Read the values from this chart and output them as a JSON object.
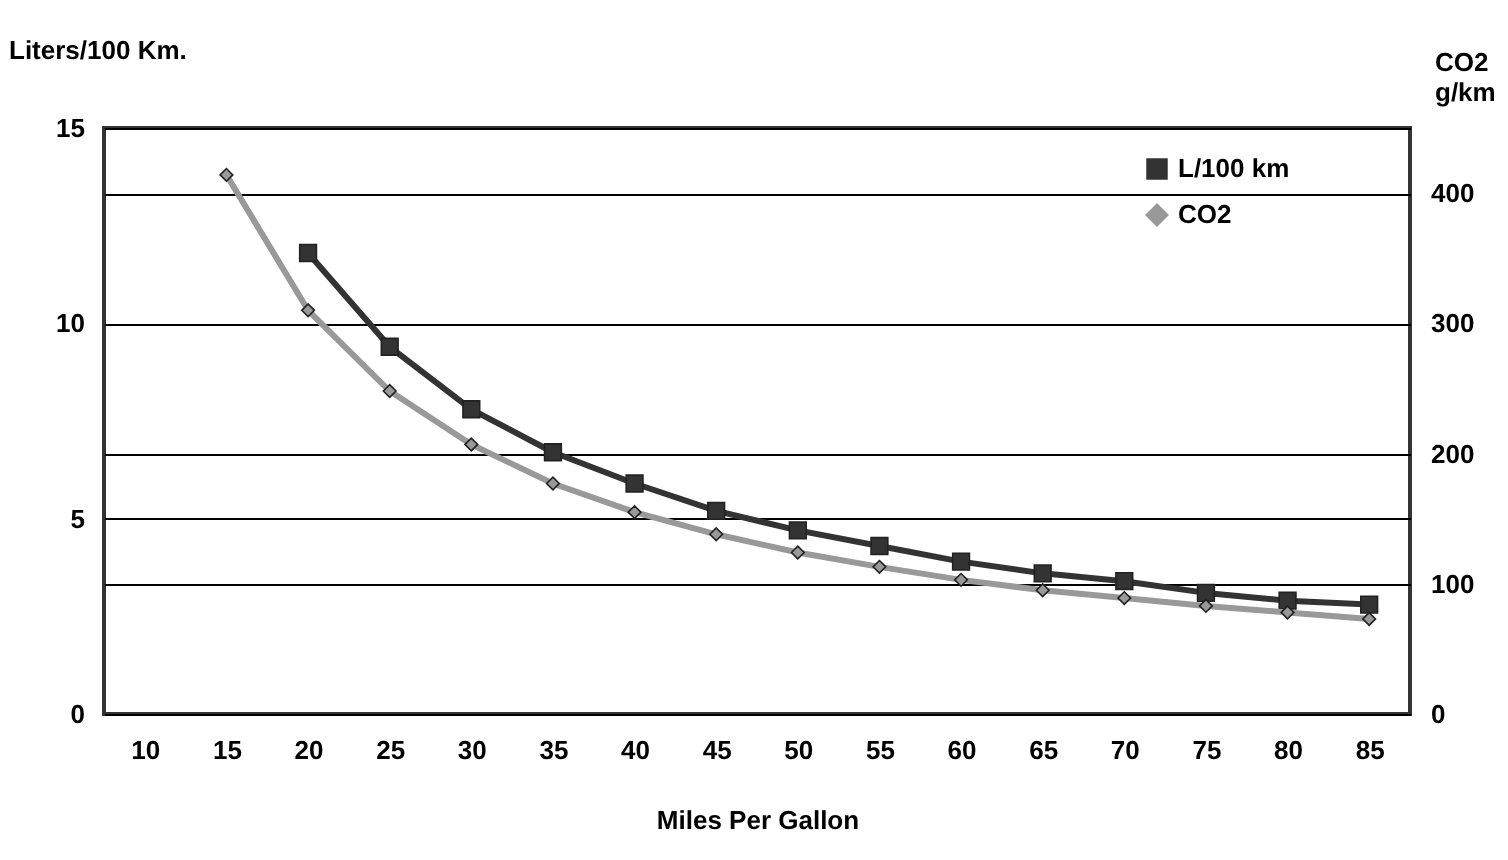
{
  "chart_data": {
    "type": "line",
    "xlabel": "Miles Per Gallon",
    "ylabel": "Liters/100 Km.",
    "y2label": "CO2\ng/km",
    "categories": [
      "10",
      "15",
      "20",
      "25",
      "30",
      "35",
      "40",
      "45",
      "50",
      "55",
      "60",
      "65",
      "70",
      "75",
      "80",
      "85"
    ],
    "series": [
      {
        "name": "L/100 km",
        "color": "#333333",
        "marker": "square",
        "values": [
          null,
          null,
          11.8,
          9.4,
          7.8,
          6.7,
          5.9,
          5.2,
          4.7,
          4.3,
          3.9,
          3.6,
          3.4,
          3.1,
          2.9,
          2.8
        ]
      },
      {
        "name": "CO2",
        "color": "#999999",
        "marker": "diamond",
        "axis": "y2",
        "values": [
          null,
          414,
          310,
          248,
          207,
          177,
          155,
          138,
          124,
          113,
          103,
          95,
          89,
          83,
          78,
          73
        ]
      }
    ],
    "ylim": [
      0,
      15
    ],
    "yticks": [
      0,
      5,
      10,
      15
    ],
    "y2lim": [
      0,
      450
    ],
    "y2ticks": [
      0,
      100,
      200,
      300,
      400
    ],
    "grid": true,
    "legend": "top right",
    "line_style": "solid"
  }
}
